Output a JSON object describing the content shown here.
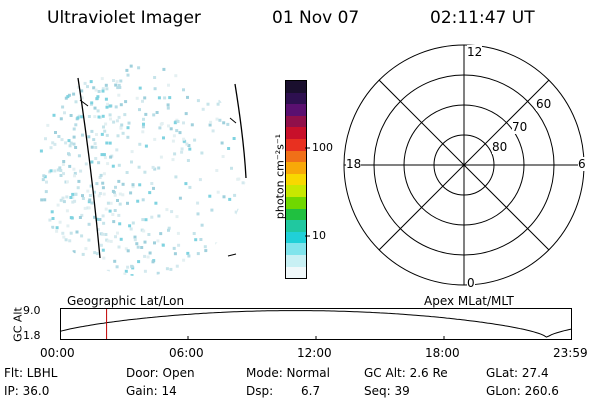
{
  "header": {
    "instrument": "Ultraviolet Imager",
    "date": "01 Nov 07",
    "time": "02:11:47 UT"
  },
  "colorbar": {
    "label": "photon cm⁻²s⁻¹",
    "ticks": [
      "100",
      "10"
    ],
    "colors": [
      "#1a0f2e",
      "#2e1050",
      "#5a1070",
      "#90104a",
      "#c8102a",
      "#e83020",
      "#f07018",
      "#f8a808",
      "#f8d800",
      "#c8e800",
      "#70d800",
      "#20c040",
      "#20c8a0",
      "#20d0d8",
      "#80e4ec",
      "#c8f0f4",
      "#f0f8fa"
    ]
  },
  "polar": {
    "mlt_labels": {
      "top": "12",
      "left": "18",
      "right": "6",
      "bottom": "0"
    },
    "lat_labels": [
      "60",
      "70",
      "80"
    ]
  },
  "strip": {
    "ylabel": "GC Alt",
    "yticks": [
      "9.0",
      "1.8"
    ],
    "left_title": "Geographic Lat/Lon",
    "right_title": "Apex MLat/MLT",
    "xticks": [
      "00:00",
      "06:00",
      "12:00",
      "18:00",
      "23:59"
    ],
    "current_time_fraction": 0.091
  },
  "info": {
    "filter": "Flt: LBHL",
    "ip": "IP: 36.0",
    "door": "Door: Open",
    "gain": "Gain: 14",
    "mode": "Mode: Normal",
    "dsp_label": "Dsp:",
    "dsp_value": "6.7",
    "gc_alt": "GC Alt: 2.6 Re",
    "seq": "Seq: 39",
    "glat": "GLat:  27.4",
    "glon": "GLon: 260.6"
  }
}
